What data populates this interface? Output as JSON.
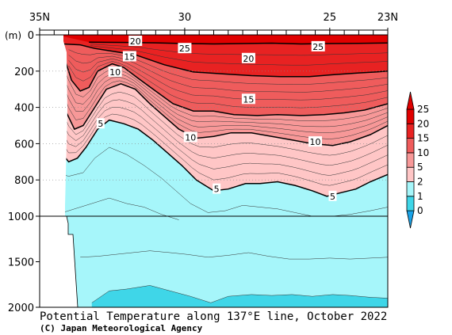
{
  "chart_data": {
    "type": "contour-section",
    "title": "Potential Temperature along 137°E line, October 2022",
    "credit": "(C) Japan Meteorological Agency",
    "x_axis": {
      "ticks": [
        {
          "label": "35N",
          "lat": 35
        },
        {
          "label": "30",
          "lat": 30
        },
        {
          "label": "25",
          "lat": 25
        },
        {
          "label": "23N",
          "lat": 23
        }
      ],
      "minor_step": 0.5,
      "range": [
        35,
        23
      ]
    },
    "y_axis": {
      "unit": "(m)",
      "upper_ticks": [
        "0",
        "200",
        "400",
        "600",
        "800",
        "1000"
      ],
      "upper_values": [
        0,
        200,
        400,
        600,
        800,
        1000
      ],
      "lower_ticks": [
        "1500",
        "2000"
      ],
      "lower_values": [
        1500,
        2000
      ],
      "break_depth": 1000,
      "range": [
        0,
        2000
      ]
    },
    "colorbar": {
      "levels": [
        "0",
        "1",
        "2",
        "5",
        "10",
        "15",
        "20",
        "25"
      ],
      "colors": [
        "#1aa3e8",
        "#3fd6e8",
        "#a6f6fa",
        "#ffc6c6",
        "#f79898",
        "#ef5c5c",
        "#e82222",
        "#e00000"
      ]
    },
    "contour_labels": [
      {
        "text": "20",
        "lat": 31.7,
        "depth": 35
      },
      {
        "text": "25",
        "lat": 30.0,
        "depth": 75
      },
      {
        "text": "25",
        "lat": 25.4,
        "depth": 65
      },
      {
        "text": "15",
        "lat": 31.9,
        "depth": 120
      },
      {
        "text": "20",
        "lat": 27.8,
        "depth": 130
      },
      {
        "text": "10",
        "lat": 32.4,
        "depth": 205
      },
      {
        "text": "15",
        "lat": 27.8,
        "depth": 355
      },
      {
        "text": "5",
        "lat": 32.9,
        "depth": 490
      },
      {
        "text": "10",
        "lat": 29.8,
        "depth": 565
      },
      {
        "text": "10",
        "lat": 25.5,
        "depth": 590
      },
      {
        "text": "5",
        "lat": 28.9,
        "depth": 850
      },
      {
        "text": "5",
        "lat": 24.9,
        "depth": 890
      }
    ],
    "isotherms": {
      "t25": [
        [
          33.3,
          40
        ],
        [
          32,
          42
        ],
        [
          31,
          44
        ],
        [
          30,
          48
        ],
        [
          29,
          50
        ],
        [
          28,
          48
        ],
        [
          27,
          46
        ],
        [
          26,
          50
        ],
        [
          25,
          48
        ],
        [
          24,
          47
        ],
        [
          23,
          45
        ]
      ],
      "t20": [
        [
          34.2,
          50
        ],
        [
          33.6,
          55
        ],
        [
          33.1,
          75
        ],
        [
          32.5,
          90
        ],
        [
          31.7,
          110
        ],
        [
          30.7,
          165
        ],
        [
          29.7,
          205
        ],
        [
          28.7,
          215
        ],
        [
          27.7,
          225
        ],
        [
          26.7,
          230
        ],
        [
          25.7,
          230
        ],
        [
          24.9,
          220
        ],
        [
          24,
          210
        ],
        [
          23.4,
          205
        ],
        [
          23,
          200
        ]
      ],
      "t15": [
        [
          34.3,
          80
        ],
        [
          34.1,
          150
        ],
        [
          33.9,
          250
        ],
        [
          33.6,
          310
        ],
        [
          33.3,
          290
        ],
        [
          33.0,
          200
        ],
        [
          32.5,
          160
        ],
        [
          32.1,
          180
        ],
        [
          31.6,
          240
        ],
        [
          31.0,
          310
        ],
        [
          30.4,
          380
        ],
        [
          29.7,
          420
        ],
        [
          29,
          420
        ],
        [
          28.3,
          440
        ],
        [
          27.5,
          445
        ],
        [
          26.8,
          440
        ],
        [
          26,
          445
        ],
        [
          25.2,
          440
        ],
        [
          24.5,
          430
        ],
        [
          23.8,
          415
        ],
        [
          23,
          380
        ]
      ],
      "t10": [
        [
          34.3,
          320
        ],
        [
          34.1,
          420
        ],
        [
          33.8,
          520
        ],
        [
          33.5,
          500
        ],
        [
          33.1,
          400
        ],
        [
          32.7,
          300
        ],
        [
          32.2,
          270
        ],
        [
          31.7,
          300
        ],
        [
          31.2,
          380
        ],
        [
          30.7,
          450
        ],
        [
          30.2,
          520
        ],
        [
          29.6,
          570
        ],
        [
          29.0,
          560
        ],
        [
          28.4,
          540
        ],
        [
          27.7,
          540
        ],
        [
          27.0,
          560
        ],
        [
          26.3,
          580
        ],
        [
          25.6,
          600
        ],
        [
          24.9,
          610
        ],
        [
          24.3,
          590
        ],
        [
          23.6,
          550
        ],
        [
          23,
          500
        ]
      ],
      "t5": [
        [
          34.4,
          580
        ],
        [
          34.3,
          640
        ],
        [
          34.0,
          700
        ],
        [
          33.7,
          680
        ],
        [
          33.4,
          620
        ],
        [
          33.0,
          520
        ],
        [
          32.6,
          470
        ],
        [
          32.1,
          490
        ],
        [
          31.6,
          520
        ],
        [
          31.1,
          580
        ],
        [
          30.6,
          650
        ],
        [
          30.1,
          720
        ],
        [
          29.6,
          800
        ],
        [
          29.0,
          860
        ],
        [
          28.5,
          850
        ],
        [
          27.9,
          820
        ],
        [
          27.4,
          820
        ],
        [
          26.8,
          810
        ],
        [
          26.2,
          830
        ],
        [
          25.6,
          860
        ],
        [
          25.1,
          890
        ],
        [
          24.6,
          870
        ],
        [
          24.1,
          850
        ],
        [
          23.6,
          810
        ],
        [
          23,
          770
        ]
      ]
    }
  }
}
